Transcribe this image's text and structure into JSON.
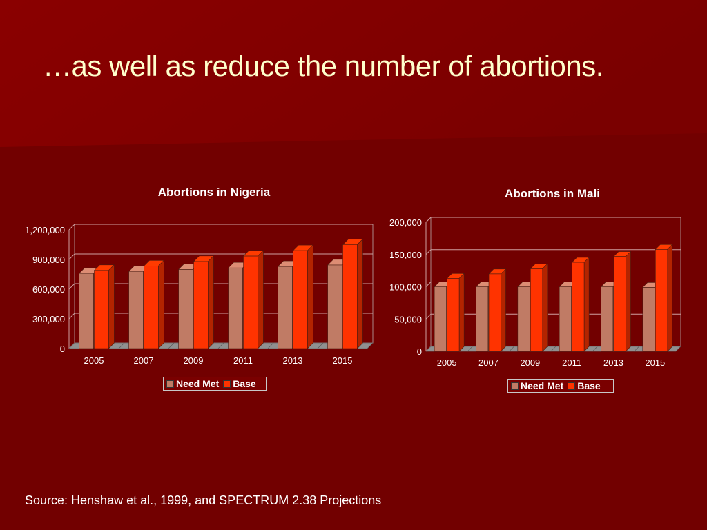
{
  "slide": {
    "title": "…as well as reduce the number of abortions.",
    "source": "Source: Henshaw et al., 1999, and SPECTRUM 2.38 Projections"
  },
  "colors": {
    "background": "#720000",
    "title_text": "#FFFFCC",
    "need_met": "#C07B65",
    "base": "#FF3300"
  },
  "chart_data": [
    {
      "type": "bar",
      "title": "Abortions in Nigeria",
      "categories": [
        "2005",
        "2007",
        "2009",
        "2011",
        "2013",
        "2015"
      ],
      "series": [
        {
          "name": "Need Met",
          "values": [
            760000,
            780000,
            800000,
            815000,
            830000,
            845000
          ]
        },
        {
          "name": "Base",
          "values": [
            790000,
            835000,
            880000,
            935000,
            990000,
            1050000
          ]
        }
      ],
      "ylim": [
        0,
        1200000
      ],
      "yticks": [
        0,
        300000,
        600000,
        900000,
        1200000
      ],
      "ytick_labels": [
        "0",
        "300,000",
        "600,000",
        "900,000",
        "1,200,000"
      ],
      "grid": true,
      "legend_position": "bottom"
    },
    {
      "type": "bar",
      "title": "Abortions in Mali",
      "categories": [
        "2005",
        "2007",
        "2009",
        "2011",
        "2013",
        "2015"
      ],
      "series": [
        {
          "name": "Need Met",
          "values": [
            100000,
            100000,
            100000,
            100000,
            100000,
            99000
          ]
        },
        {
          "name": "Base",
          "values": [
            113000,
            120000,
            128000,
            138000,
            147000,
            158000
          ]
        }
      ],
      "ylim": [
        0,
        200000
      ],
      "yticks": [
        0,
        50000,
        100000,
        150000,
        200000
      ],
      "ytick_labels": [
        "0",
        "50,000",
        "100,000",
        "150,000",
        "200,000"
      ],
      "grid": true,
      "legend_position": "bottom"
    }
  ]
}
